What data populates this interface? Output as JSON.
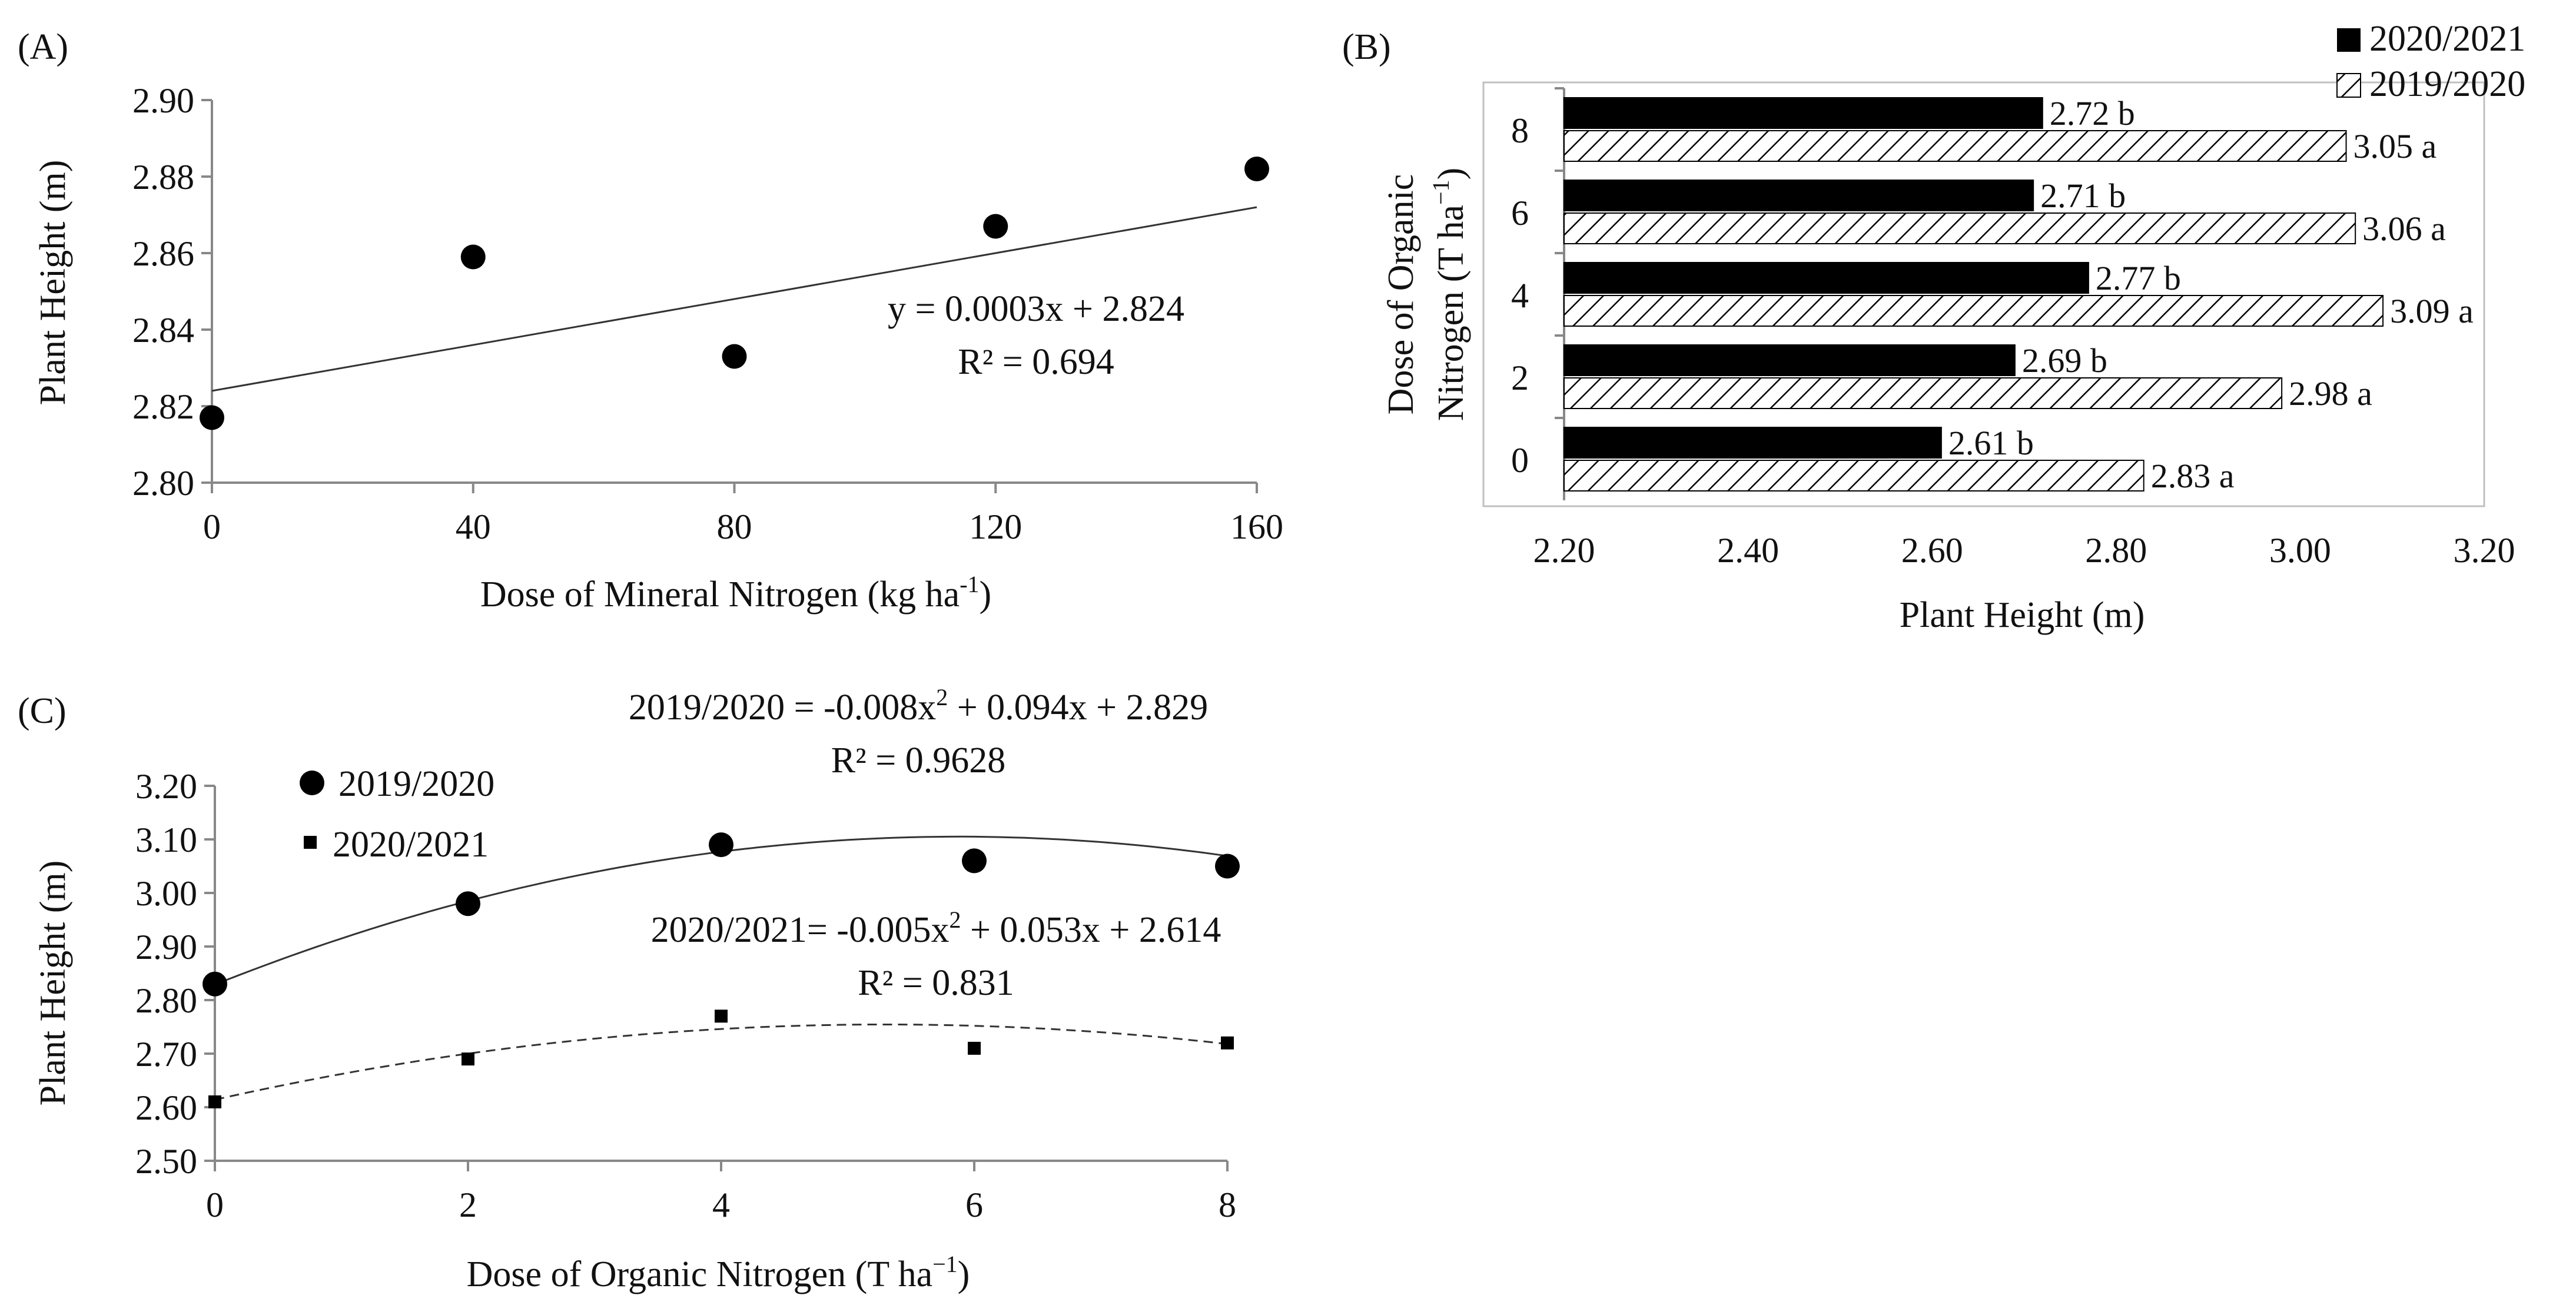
{
  "chart_data": [
    {
      "panel": "(A)",
      "type": "scatter",
      "title": "",
      "xlabel": "Dose of Mineral Nitrogen (kg ha",
      "xlabel_sup": "-1",
      "xlabel_end": ")",
      "ylabel": "Plant Height (m)",
      "xlim": [
        0,
        160
      ],
      "ylim": [
        2.8,
        2.9
      ],
      "xticks": [
        0,
        40,
        80,
        120,
        160
      ],
      "xtick_labels": [
        "0",
        "40",
        "80",
        "120",
        "160"
      ],
      "yticks": [
        2.8,
        2.82,
        2.84,
        2.86,
        2.88,
        2.9
      ],
      "ytick_labels": [
        "2.80",
        "2.82",
        "2.84",
        "2.86",
        "2.88",
        "2.90"
      ],
      "grid": false,
      "points": [
        {
          "x": 0,
          "y": 2.817
        },
        {
          "x": 40,
          "y": 2.859
        },
        {
          "x": 80,
          "y": 2.833
        },
        {
          "x": 120,
          "y": 2.867
        },
        {
          "x": 160,
          "y": 2.882
        }
      ],
      "trendline": {
        "type": "linear",
        "slope": 0.0003,
        "intercept": 2.824
      },
      "equation": "y = 0.0003x  + 2.824",
      "r2": "R² = 0.694"
    },
    {
      "panel": "(B)",
      "type": "bar",
      "orientation": "horizontal",
      "title": "",
      "xlabel": "Plant Height (m)",
      "ylabel_line1": "Dose of Organic",
      "ylabel_line2": "Nitrogen  (T ha",
      "ylabel_sup": "−1",
      "ylabel_end": ")",
      "xlim": [
        2.2,
        3.2
      ],
      "xticks": [
        2.2,
        2.4,
        2.6,
        2.8,
        3.0,
        3.2
      ],
      "xtick_labels": [
        "2.20",
        "2.40",
        "2.60",
        "2.80",
        "3.00",
        "3.20"
      ],
      "categories": [
        "0",
        "2",
        "4",
        "6",
        "8"
      ],
      "legend_position": "top-right",
      "series": [
        {
          "name": "2020/2021",
          "fill": "solid",
          "color": "#000000",
          "values": [
            2.61,
            2.69,
            2.77,
            2.71,
            2.72
          ],
          "labels": [
            "2.61 b",
            "2.69 b",
            "2.77 b",
            "2.71 b",
            "2.72 b"
          ]
        },
        {
          "name": "2019/2020",
          "fill": "hatched",
          "color": "#000000",
          "values": [
            2.83,
            2.98,
            3.09,
            3.06,
            3.05
          ],
          "labels": [
            "2.83 a",
            "2.98 a",
            "3.09 a",
            "3.06 a",
            "3.05 a"
          ]
        }
      ]
    },
    {
      "panel": "(C)",
      "type": "scatter",
      "title": "",
      "xlabel": "Dose of Organic  Nitrogen  (T ha",
      "xlabel_sup": "−1",
      "xlabel_end": ")",
      "ylabel": "Plant Height (m)",
      "xlim": [
        0,
        8
      ],
      "ylim": [
        2.5,
        3.2
      ],
      "xticks": [
        0,
        2,
        4,
        6,
        8
      ],
      "xtick_labels": [
        "0",
        "2",
        "4",
        "6",
        "8"
      ],
      "yticks": [
        2.5,
        2.6,
        2.7,
        2.8,
        2.9,
        3.0,
        3.1,
        3.2
      ],
      "ytick_labels": [
        "2.50",
        "2.60",
        "2.70",
        "2.80",
        "2.90",
        "3.00",
        "3.10",
        "3.20"
      ],
      "legend_position": "top-left",
      "series": [
        {
          "name": "2019/2020",
          "marker": "circle",
          "line": "solid",
          "x": [
            0,
            2,
            4,
            6,
            8
          ],
          "y": [
            2.83,
            2.98,
            3.09,
            3.06,
            3.05
          ],
          "fit": {
            "a": -0.008,
            "b": 0.094,
            "c": 2.829
          },
          "equation_prefix": "2019/2020  = -0.008x",
          "equation_suffix": "  + 0.094x  + 2.829",
          "r2": "R² = 0.9628"
        },
        {
          "name": "2020/2021",
          "marker": "square",
          "line": "dashed",
          "x": [
            0,
            2,
            4,
            6,
            8
          ],
          "y": [
            2.61,
            2.69,
            2.77,
            2.71,
            2.72
          ],
          "fit": {
            "a": -0.005,
            "b": 0.053,
            "c": 2.614
          },
          "equation_prefix": "2020/2021=  -0.005x",
          "equation_suffix": "  + 0.053x  + 2.614",
          "r2": "R² = 0.831"
        }
      ]
    }
  ]
}
